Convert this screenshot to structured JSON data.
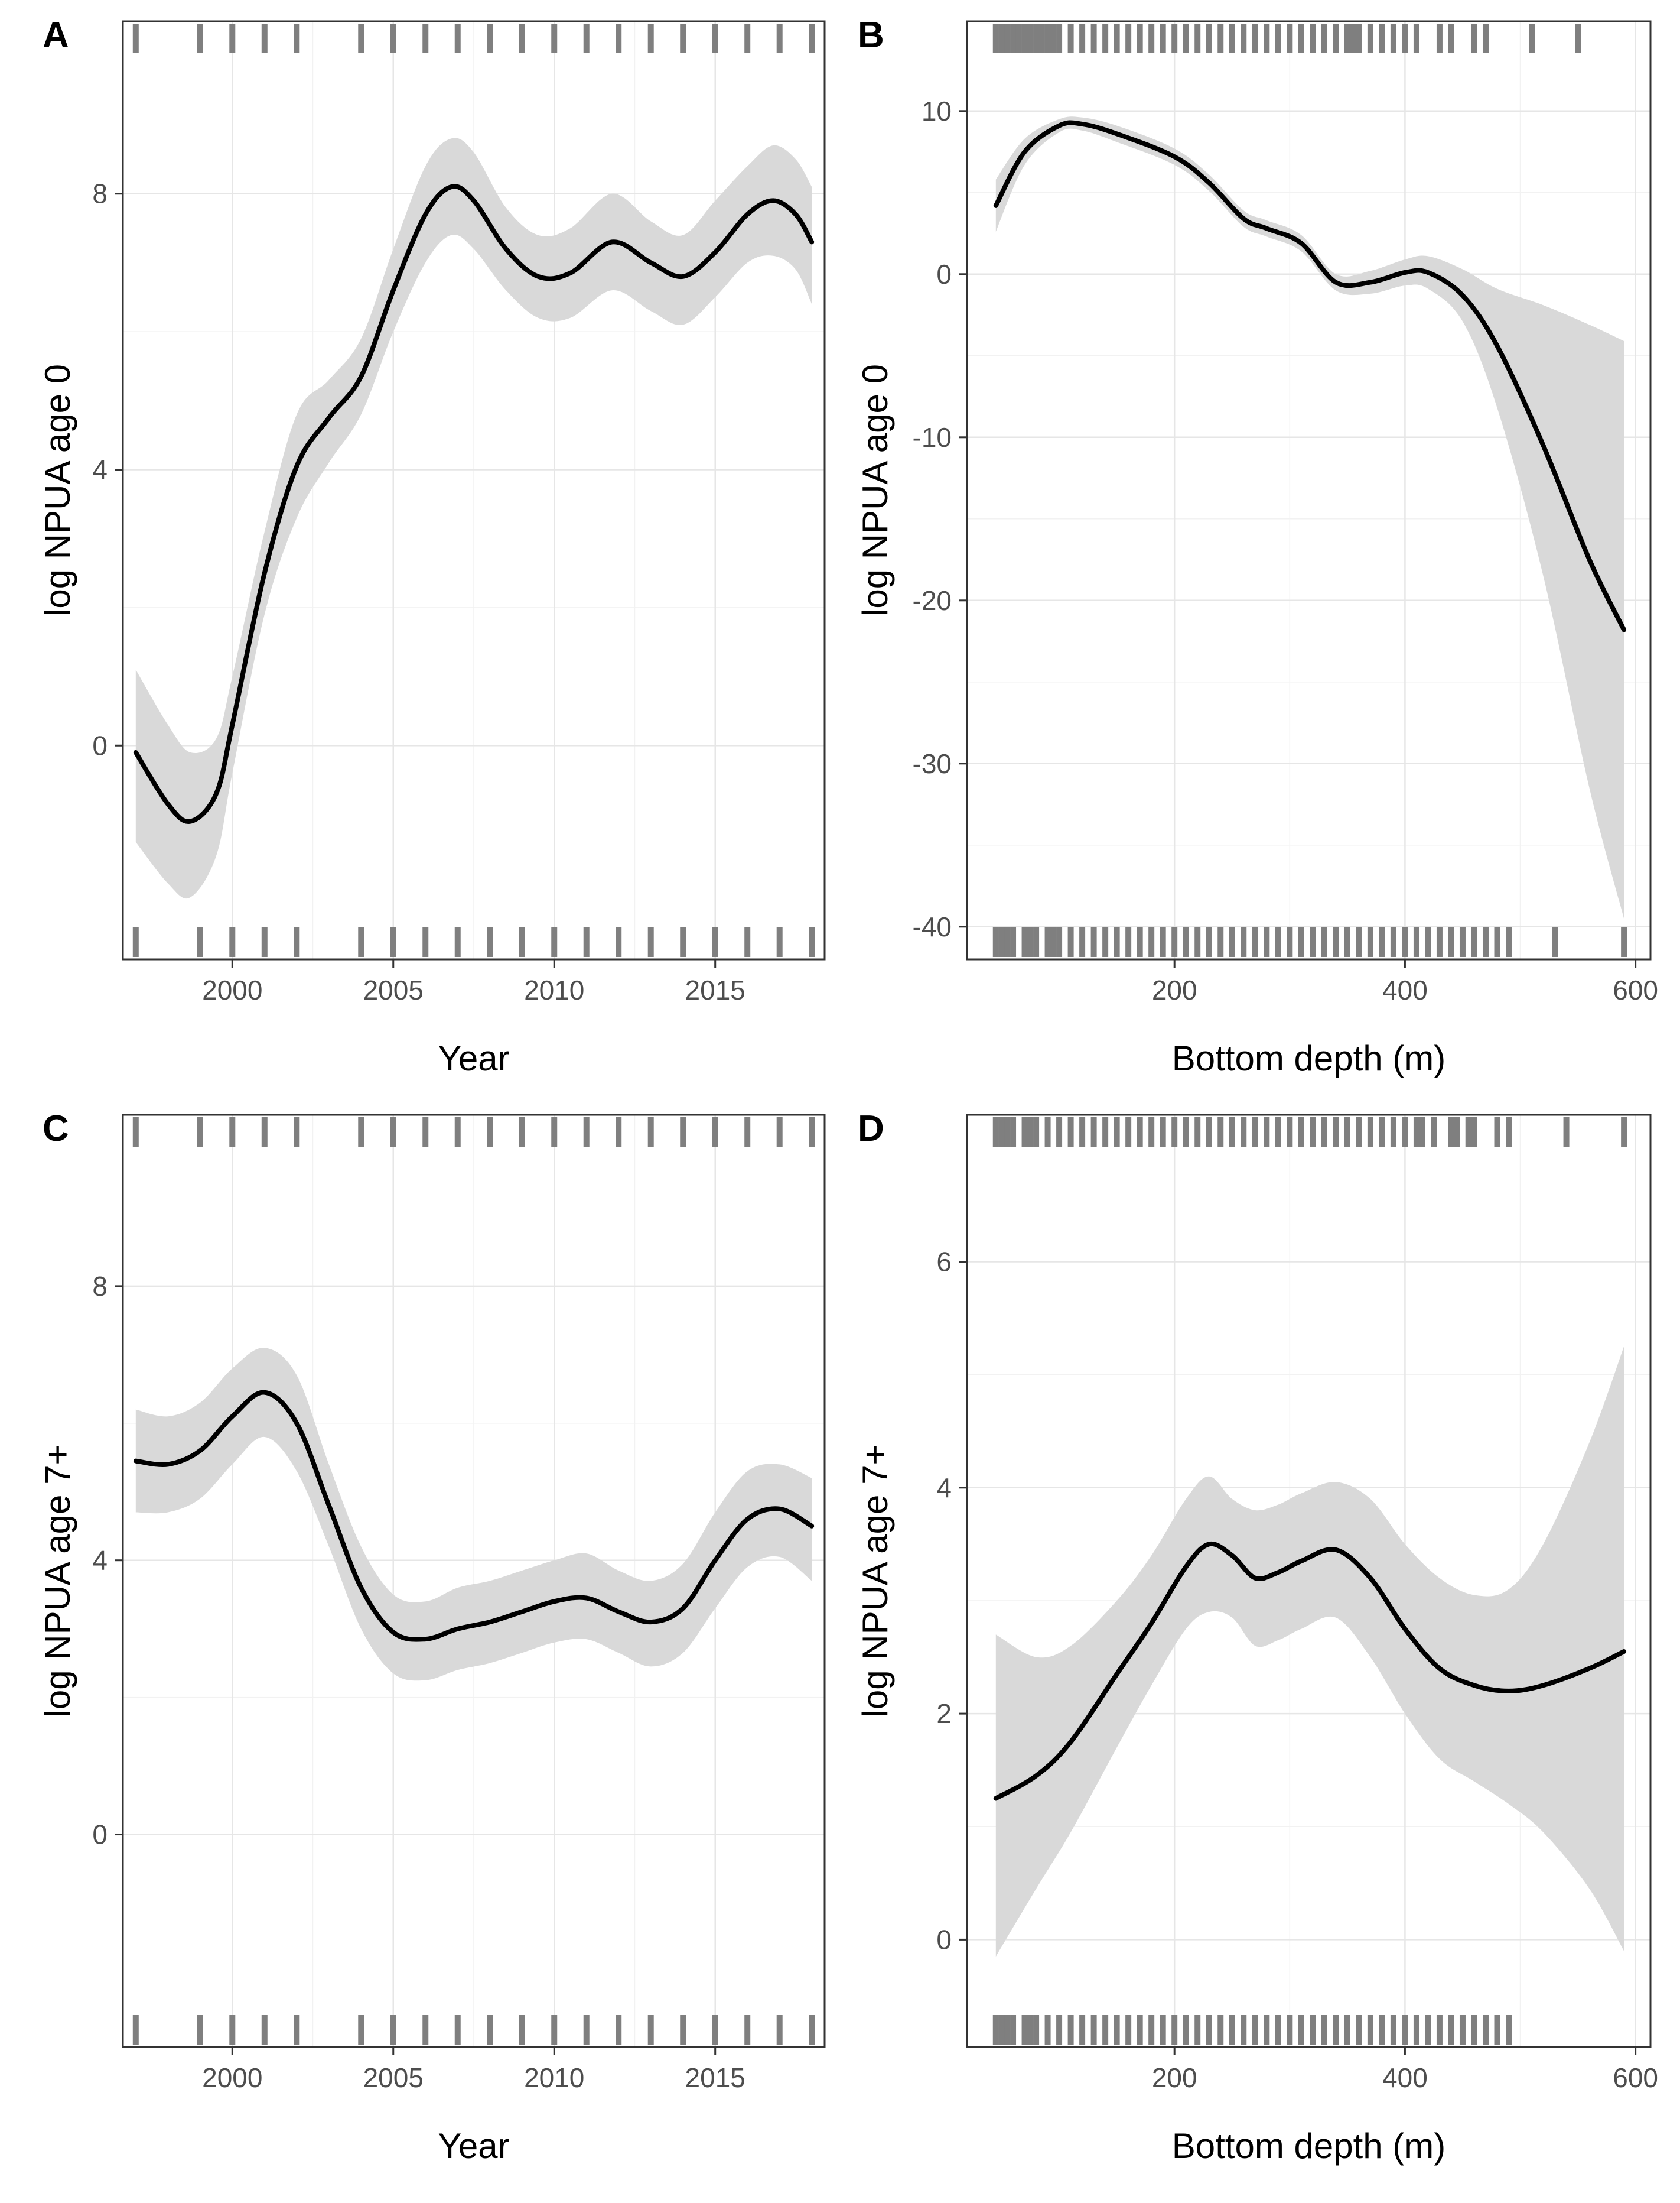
{
  "chart_data": [
    {
      "panel": "A",
      "type": "line",
      "xlabel": "Year",
      "ylabel": "log NPUA age 0",
      "xlim": [
        1996.6,
        2018.4
      ],
      "ylim": [
        -3.1,
        10.5
      ],
      "xticks": [
        2000,
        2005,
        2010,
        2015
      ],
      "yticks": [
        0,
        4,
        8
      ],
      "grid": true,
      "series": [
        {
          "name": "fit",
          "x": [
            1997,
            1998,
            1998.7,
            1999.5,
            2000,
            2001,
            2002,
            2003,
            2004,
            2005,
            2006,
            2006.8,
            2007.5,
            2008.5,
            2009.5,
            2010.5,
            2011.8,
            2013,
            2014,
            2015,
            2016,
            2016.8,
            2017.5,
            2018
          ],
          "y": [
            -0.1,
            -0.85,
            -1.1,
            -0.7,
            0.3,
            2.5,
            4.05,
            4.75,
            5.35,
            6.6,
            7.7,
            8.1,
            7.9,
            7.2,
            6.8,
            6.85,
            7.3,
            7.0,
            6.8,
            7.15,
            7.7,
            7.9,
            7.7,
            7.3
          ]
        },
        {
          "name": "ci_upper",
          "x": [
            1997,
            1998,
            1998.7,
            1999.5,
            2000,
            2001,
            2002,
            2003,
            2004,
            2005,
            2006,
            2006.8,
            2007.5,
            2008.5,
            2009.5,
            2010.5,
            2011.8,
            2013,
            2014,
            2015,
            2016,
            2016.8,
            2017.5,
            2018
          ],
          "y": [
            1.1,
            0.3,
            -0.1,
            0.1,
            1.0,
            3.1,
            4.8,
            5.3,
            5.9,
            7.2,
            8.4,
            8.8,
            8.6,
            7.8,
            7.4,
            7.5,
            8.0,
            7.6,
            7.4,
            7.9,
            8.4,
            8.7,
            8.5,
            8.1
          ]
        },
        {
          "name": "ci_lower",
          "x": [
            1997,
            1998,
            1998.7,
            1999.5,
            2000,
            2001,
            2002,
            2003,
            2004,
            2005,
            2006,
            2006.8,
            2007.5,
            2008.5,
            2009.5,
            2010.5,
            2011.8,
            2013,
            2014,
            2015,
            2016,
            2016.8,
            2017.5,
            2018
          ],
          "y": [
            -1.4,
            -2.0,
            -2.2,
            -1.6,
            -0.4,
            1.9,
            3.3,
            4.1,
            4.8,
            6.0,
            7.0,
            7.4,
            7.2,
            6.6,
            6.2,
            6.2,
            6.6,
            6.3,
            6.1,
            6.5,
            7.0,
            7.1,
            6.9,
            6.4
          ]
        }
      ],
      "rug_top": [
        1997,
        1999,
        2000,
        2001,
        2002,
        2004,
        2005,
        2006,
        2007,
        2008,
        2009,
        2010,
        2011,
        2012,
        2013,
        2014,
        2015,
        2016,
        2017,
        2018
      ],
      "rug_bottom": [
        1997,
        1999,
        2000,
        2001,
        2002,
        2004,
        2005,
        2006,
        2007,
        2008,
        2009,
        2010,
        2011,
        2012,
        2013,
        2014,
        2015,
        2016,
        2017,
        2018
      ]
    },
    {
      "panel": "B",
      "type": "line",
      "xlabel": "Bottom depth (m)",
      "ylabel": "log NPUA age 0",
      "xlim": [
        20,
        613
      ],
      "ylim": [
        -42,
        15.5
      ],
      "xticks": [
        200,
        400,
        600
      ],
      "yticks": [
        10,
        0,
        -10,
        -20,
        -30,
        -40
      ],
      "grid": true,
      "series": [
        {
          "name": "fit",
          "x": [
            45,
            70,
            100,
            120,
            150,
            200,
            230,
            260,
            280,
            310,
            340,
            370,
            400,
            420,
            450,
            480,
            520,
            560,
            590
          ],
          "y": [
            4.2,
            7.5,
            9.1,
            9.2,
            8.6,
            7.2,
            5.6,
            3.4,
            2.8,
            1.9,
            -0.5,
            -0.5,
            0.1,
            0.1,
            -1.3,
            -4.4,
            -10.5,
            -17.5,
            -21.8
          ]
        },
        {
          "name": "ci_upper",
          "x": [
            45,
            70,
            100,
            120,
            150,
            200,
            230,
            260,
            280,
            310,
            340,
            370,
            400,
            420,
            450,
            480,
            520,
            560,
            590
          ],
          "y": [
            5.8,
            8.3,
            9.5,
            9.6,
            9.1,
            7.7,
            6.1,
            3.9,
            3.3,
            2.4,
            0.0,
            0.2,
            0.9,
            1.1,
            0.3,
            -0.9,
            -1.9,
            -3.1,
            -4.1
          ]
        },
        {
          "name": "ci_lower",
          "x": [
            45,
            70,
            100,
            120,
            150,
            200,
            230,
            260,
            280,
            310,
            340,
            370,
            400,
            420,
            450,
            480,
            520,
            560,
            590
          ],
          "y": [
            2.6,
            6.7,
            8.7,
            8.8,
            8.1,
            6.7,
            5.1,
            2.9,
            2.3,
            1.4,
            -1.0,
            -1.2,
            -0.7,
            -0.9,
            -2.9,
            -8.2,
            -18.5,
            -31.5,
            -39.5
          ]
        }
      ],
      "rug_top": [
        45,
        50,
        55,
        60,
        65,
        70,
        75,
        80,
        85,
        90,
        95,
        100,
        110,
        120,
        130,
        140,
        150,
        160,
        170,
        180,
        190,
        200,
        210,
        220,
        230,
        240,
        250,
        260,
        270,
        280,
        290,
        300,
        310,
        320,
        330,
        340,
        350,
        355,
        360,
        370,
        380,
        390,
        400,
        410,
        430,
        440,
        460,
        470,
        510,
        550
      ],
      "rug_bottom": [
        45,
        50,
        55,
        60,
        70,
        75,
        80,
        90,
        95,
        100,
        110,
        120,
        130,
        140,
        150,
        160,
        170,
        180,
        190,
        200,
        210,
        220,
        230,
        240,
        250,
        260,
        270,
        280,
        290,
        300,
        310,
        320,
        330,
        340,
        350,
        360,
        370,
        380,
        390,
        400,
        410,
        420,
        430,
        440,
        450,
        460,
        470,
        480,
        490,
        530,
        590
      ]
    },
    {
      "panel": "C",
      "type": "line",
      "xlabel": "Year",
      "ylabel": "log NPUA age 7+",
      "xlim": [
        1996.6,
        2018.4
      ],
      "ylim": [
        -3.1,
        10.5
      ],
      "xticks": [
        2000,
        2005,
        2010,
        2015
      ],
      "yticks": [
        0,
        4,
        8
      ],
      "grid": true,
      "series": [
        {
          "name": "fit",
          "x": [
            1997,
            1998,
            1999,
            2000,
            2001,
            2002,
            2003,
            2004,
            2005,
            2006,
            2007,
            2008,
            2009,
            2010,
            2011,
            2012,
            2013,
            2014,
            2015,
            2016,
            2017,
            2018
          ],
          "y": [
            5.45,
            5.4,
            5.6,
            6.1,
            6.45,
            6.0,
            4.8,
            3.6,
            2.95,
            2.85,
            3.0,
            3.1,
            3.25,
            3.4,
            3.45,
            3.25,
            3.1,
            3.3,
            4.0,
            4.6,
            4.75,
            4.5
          ]
        },
        {
          "name": "ci_upper",
          "x": [
            1997,
            1998,
            1999,
            2000,
            2001,
            2002,
            2003,
            2004,
            2005,
            2006,
            2007,
            2008,
            2009,
            2010,
            2011,
            2012,
            2013,
            2014,
            2015,
            2016,
            2017,
            2018
          ],
          "y": [
            6.2,
            6.1,
            6.3,
            6.8,
            7.1,
            6.7,
            5.4,
            4.2,
            3.5,
            3.4,
            3.6,
            3.7,
            3.85,
            4.0,
            4.1,
            3.85,
            3.7,
            3.95,
            4.7,
            5.3,
            5.4,
            5.2
          ]
        },
        {
          "name": "ci_lower",
          "x": [
            1997,
            1998,
            1999,
            2000,
            2001,
            2002,
            2003,
            2004,
            2005,
            2006,
            2007,
            2008,
            2009,
            2010,
            2011,
            2012,
            2013,
            2014,
            2015,
            2016,
            2017,
            2018
          ],
          "y": [
            4.7,
            4.7,
            4.9,
            5.4,
            5.8,
            5.3,
            4.2,
            3.0,
            2.35,
            2.25,
            2.4,
            2.5,
            2.65,
            2.8,
            2.85,
            2.65,
            2.45,
            2.65,
            3.3,
            3.9,
            4.05,
            3.7
          ]
        }
      ],
      "rug_top": [
        1997,
        1999,
        2000,
        2001,
        2002,
        2004,
        2005,
        2006,
        2007,
        2008,
        2009,
        2010,
        2011,
        2012,
        2013,
        2014,
        2015,
        2016,
        2017,
        2018
      ],
      "rug_bottom": [
        1997,
        1999,
        2000,
        2001,
        2002,
        2004,
        2005,
        2006,
        2007,
        2008,
        2009,
        2010,
        2011,
        2012,
        2013,
        2014,
        2015,
        2016,
        2017,
        2018
      ]
    },
    {
      "panel": "D",
      "type": "line",
      "xlabel": "Bottom depth (m)",
      "ylabel": "log NPUA age 7+",
      "xlim": [
        20,
        613
      ],
      "ylim": [
        -0.95,
        7.3
      ],
      "xticks": [
        200,
        400,
        600
      ],
      "yticks": [
        0,
        2,
        4,
        6
      ],
      "grid": true,
      "series": [
        {
          "name": "fit",
          "x": [
            45,
            80,
            110,
            150,
            180,
            210,
            230,
            250,
            270,
            290,
            310,
            340,
            370,
            400,
            430,
            460,
            490,
            520,
            560,
            590
          ],
          "y": [
            1.25,
            1.45,
            1.75,
            2.35,
            2.8,
            3.3,
            3.5,
            3.4,
            3.2,
            3.25,
            3.35,
            3.45,
            3.2,
            2.75,
            2.4,
            2.25,
            2.2,
            2.25,
            2.4,
            2.55
          ]
        },
        {
          "name": "ci_upper",
          "x": [
            45,
            80,
            110,
            150,
            180,
            210,
            230,
            250,
            270,
            290,
            310,
            340,
            370,
            400,
            430,
            460,
            490,
            520,
            560,
            590
          ],
          "y": [
            2.7,
            2.5,
            2.6,
            3.0,
            3.4,
            3.9,
            4.1,
            3.9,
            3.8,
            3.85,
            3.95,
            4.05,
            3.9,
            3.5,
            3.2,
            3.05,
            3.1,
            3.5,
            4.4,
            5.25
          ]
        },
        {
          "name": "ci_lower",
          "x": [
            45,
            80,
            110,
            150,
            180,
            210,
            230,
            250,
            270,
            290,
            310,
            340,
            370,
            400,
            430,
            460,
            490,
            520,
            560,
            590
          ],
          "y": [
            -0.15,
            0.45,
            0.95,
            1.7,
            2.25,
            2.75,
            2.9,
            2.85,
            2.6,
            2.65,
            2.75,
            2.85,
            2.5,
            2.0,
            1.6,
            1.4,
            1.2,
            0.95,
            0.45,
            -0.1
          ]
        }
      ],
      "rug_top": [
        45,
        50,
        55,
        60,
        70,
        75,
        80,
        90,
        100,
        110,
        120,
        130,
        140,
        150,
        160,
        170,
        180,
        190,
        200,
        210,
        220,
        230,
        240,
        250,
        260,
        270,
        280,
        290,
        300,
        310,
        320,
        330,
        340,
        350,
        360,
        370,
        380,
        390,
        400,
        410,
        415,
        425,
        440,
        445,
        455,
        460,
        480,
        490,
        540,
        590
      ],
      "rug_bottom": [
        45,
        50,
        55,
        60,
        70,
        75,
        80,
        90,
        100,
        110,
        120,
        130,
        140,
        150,
        160,
        170,
        180,
        190,
        200,
        210,
        220,
        230,
        240,
        250,
        260,
        270,
        280,
        290,
        300,
        310,
        320,
        330,
        340,
        350,
        360,
        370,
        380,
        390,
        400,
        410,
        420,
        430,
        440,
        450,
        460,
        470,
        480,
        490
      ]
    }
  ]
}
